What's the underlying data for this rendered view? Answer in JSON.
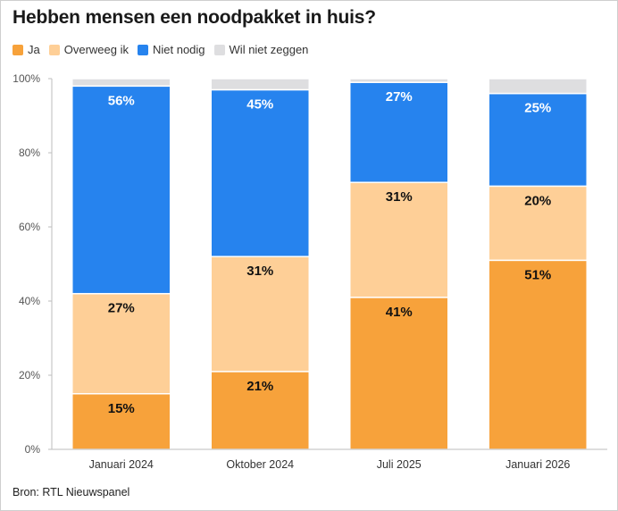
{
  "chart_data": {
    "type": "bar",
    "stacked": true,
    "title": "Hebben mensen een noodpakket in huis?",
    "categories": [
      "Januari 2024",
      "Oktober 2024",
      "Juli 2025",
      "Januari 2026"
    ],
    "series": [
      {
        "name": "Ja",
        "color": "#f7a23b",
        "label_color": "#111111",
        "values": [
          15,
          21,
          41,
          51
        ],
        "labels": [
          "15%",
          "21%",
          "41%",
          "51%"
        ]
      },
      {
        "name": "Overweeg ik",
        "color": "#fecf97",
        "label_color": "#111111",
        "values": [
          27,
          31,
          31,
          20
        ],
        "labels": [
          "27%",
          "31%",
          "31%",
          "20%"
        ]
      },
      {
        "name": "Niet nodig",
        "color": "#2683ee",
        "label_color": "#ffffff",
        "values": [
          56,
          45,
          27,
          25
        ],
        "labels": [
          "56%",
          "45%",
          "27%",
          "25%"
        ]
      },
      {
        "name": "Wil niet zeggen",
        "color": "#dedee0",
        "label_color": "#111111",
        "values": [
          2,
          3,
          1,
          4
        ],
        "labels": [
          "",
          "",
          "",
          ""
        ]
      }
    ],
    "y_ticks": [
      "0%",
      "20%",
      "40%",
      "60%",
      "80%",
      "100%"
    ],
    "ylim": [
      0,
      100
    ],
    "legend_position": "top-left"
  },
  "source": "Bron: RTL Nieuwspanel"
}
